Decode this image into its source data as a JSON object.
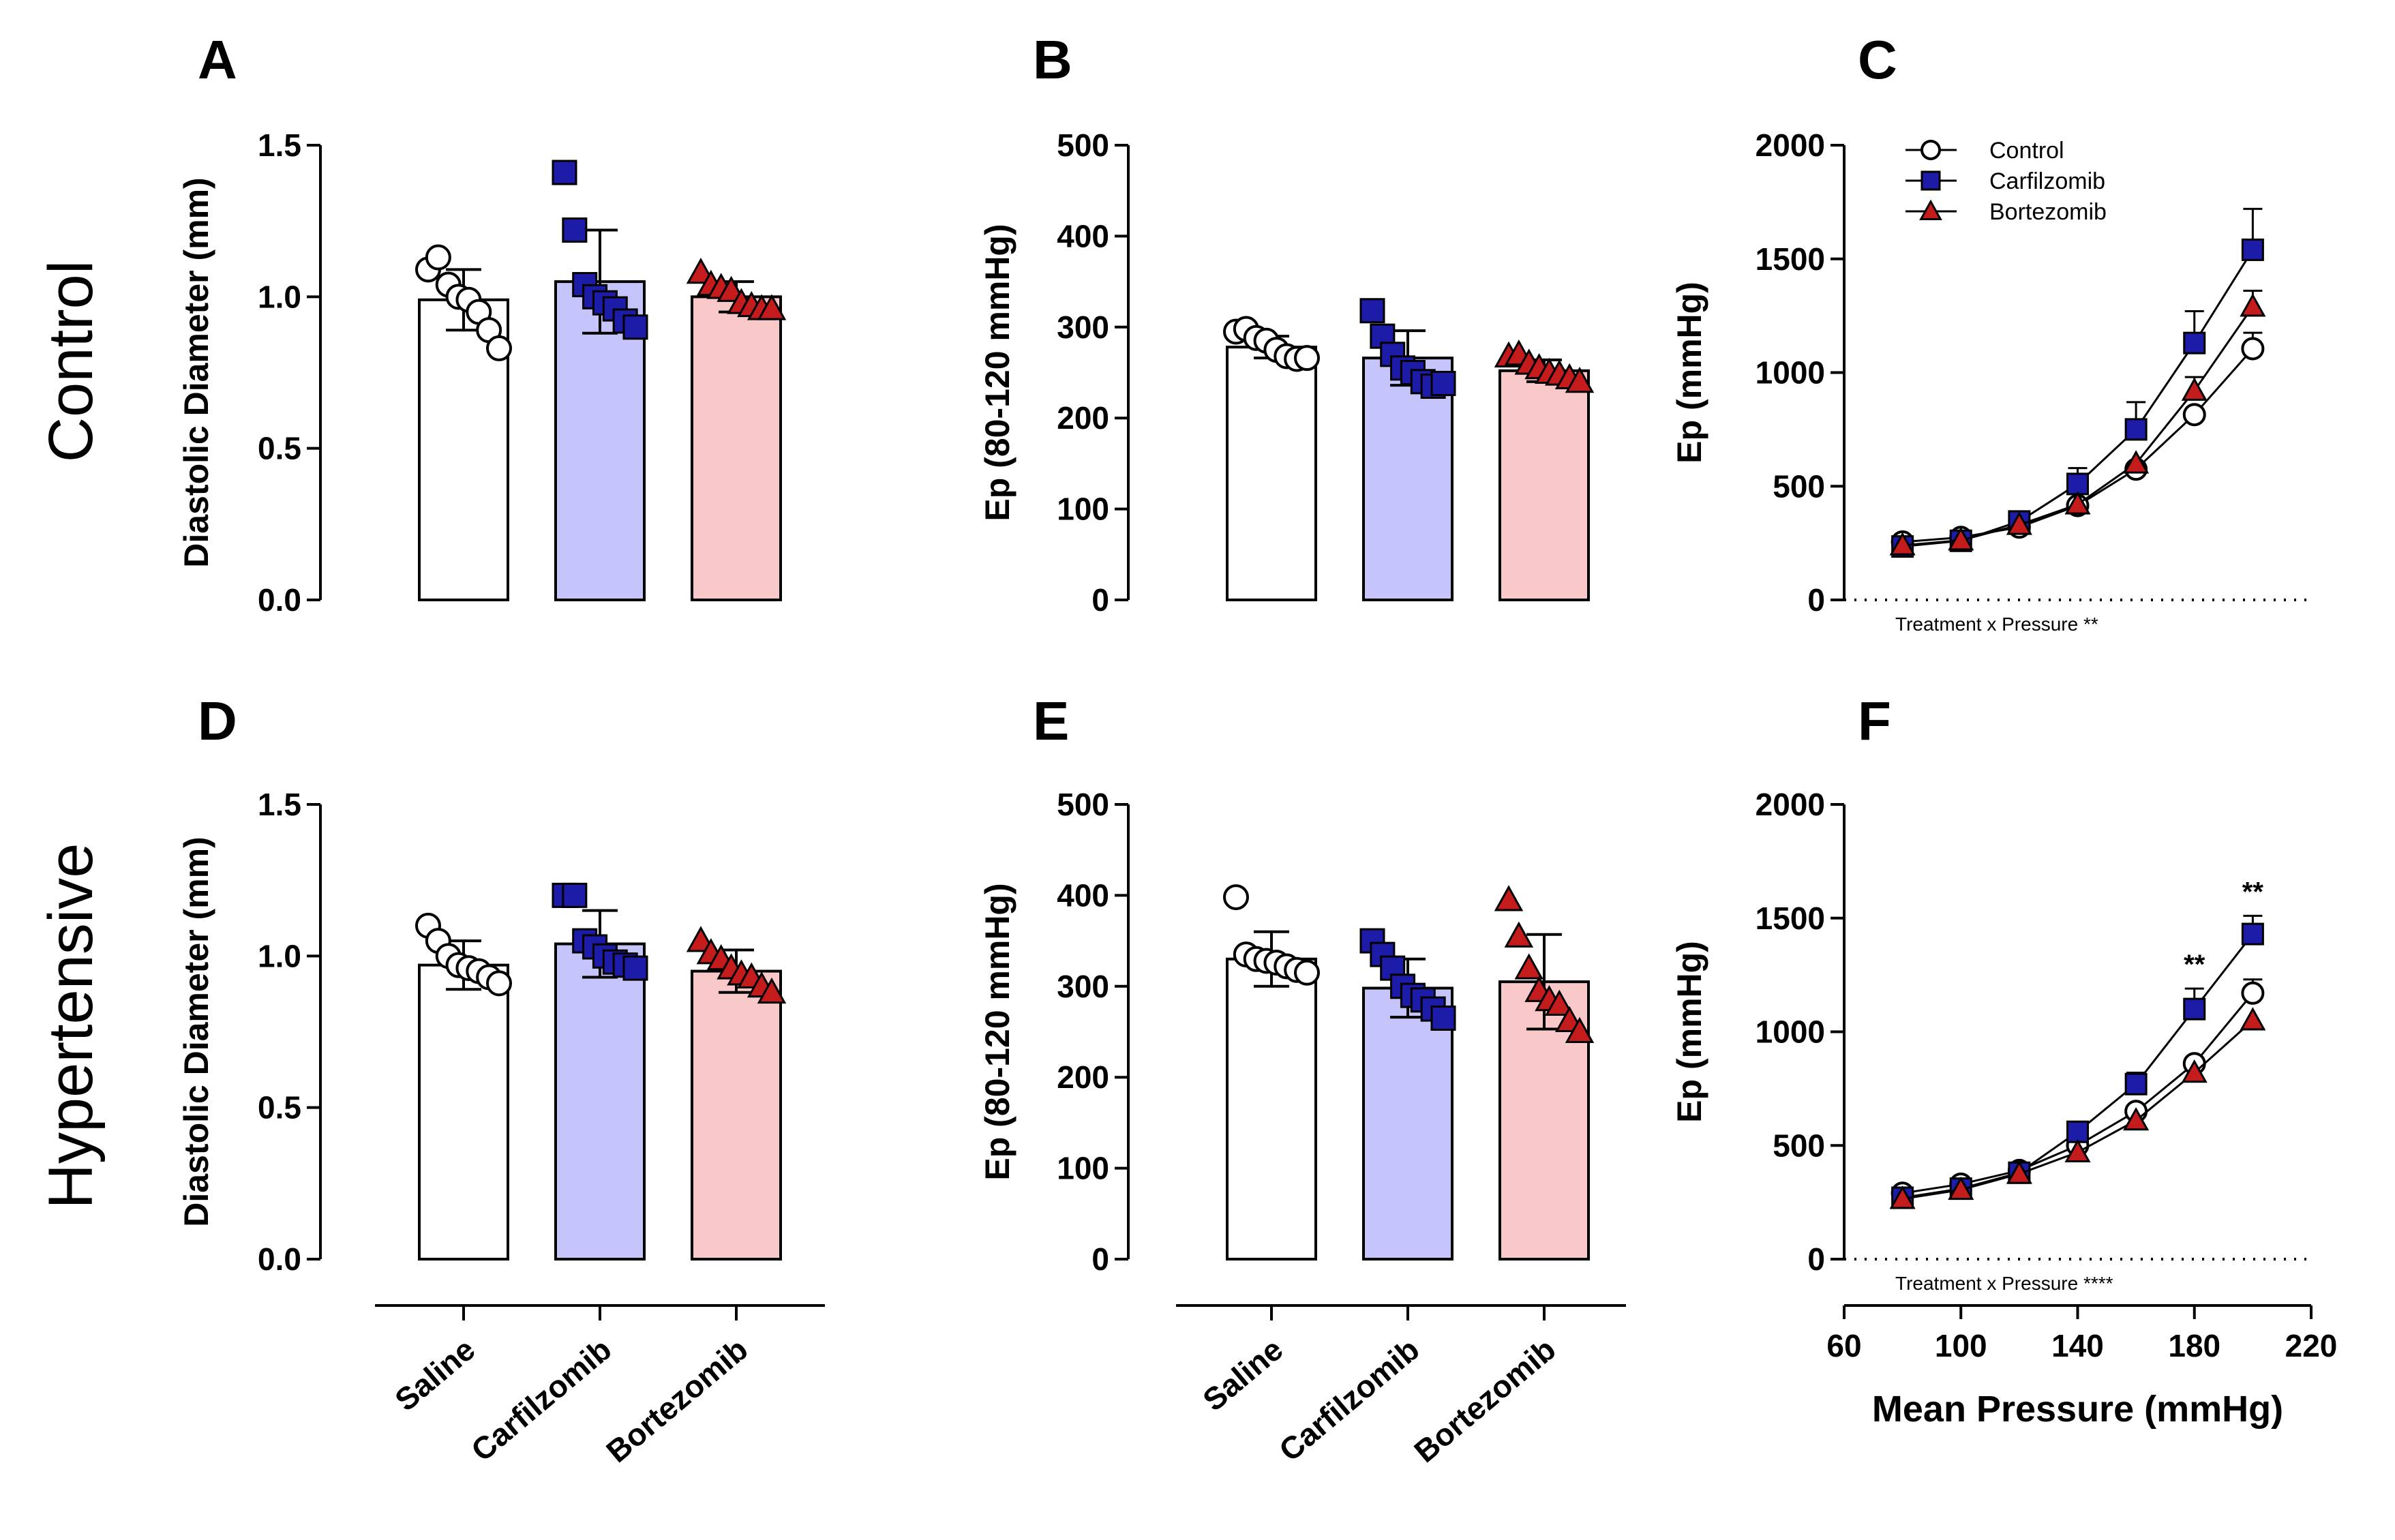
{
  "row_labels": {
    "control": "Control",
    "hypertensive": "Hypertensive"
  },
  "colors": {
    "saline_fill": "#ffffff",
    "carfilzomib_fill": "#c5c5fb",
    "bortezomib_fill": "#f9c8c8",
    "saline_marker": "#ffffff",
    "carfilzomib_marker": "#1c1ca8",
    "bortezomib_marker": "#c41c1c",
    "axis": "#000000"
  },
  "shared_x_categories": [
    "Saline",
    "Carfilzomib",
    "Bortezomib"
  ],
  "chart_data": [
    {
      "panel": "A",
      "type": "bar",
      "ylabel": "Diastolic Diameter (mm)",
      "ylim": [
        0,
        1.5
      ],
      "yticks": [
        0.0,
        0.5,
        1.0,
        1.5
      ],
      "tick_labels": [
        "0.0",
        "0.5",
        "1.0",
        "1.5"
      ],
      "categories": [
        "Saline",
        "Carfilzomib",
        "Bortezomib"
      ],
      "values": [
        0.99,
        1.05,
        1.0
      ],
      "sd": [
        0.1,
        0.17,
        0.05
      ],
      "points": [
        [
          1.09,
          1.13,
          1.04,
          1.0,
          0.99,
          0.95,
          0.89,
          0.83
        ],
        [
          1.41,
          1.22,
          1.04,
          1.0,
          0.98,
          0.96,
          0.92,
          0.9
        ],
        [
          1.08,
          1.04,
          1.03,
          1.02,
          0.98,
          0.97,
          0.96,
          0.96
        ]
      ]
    },
    {
      "panel": "B",
      "type": "bar",
      "ylabel": "Ep (80-120 mmHg)",
      "ylim": [
        0,
        500
      ],
      "yticks": [
        0,
        100,
        200,
        300,
        400,
        500
      ],
      "tick_labels": [
        "0",
        "100",
        "200",
        "300",
        "400",
        "500"
      ],
      "categories": [
        "Saline",
        "Carfilzomib",
        "Bortezomib"
      ],
      "values": [
        278,
        266,
        252
      ],
      "sd": [
        12,
        30,
        12
      ],
      "points": [
        [
          295,
          298,
          288,
          285,
          275,
          268,
          265,
          266
        ],
        [
          318,
          290,
          270,
          255,
          250,
          240,
          235,
          238
        ],
        [
          268,
          270,
          260,
          255,
          250,
          248,
          244,
          240
        ]
      ]
    },
    {
      "panel": "C",
      "type": "line",
      "ylabel": "Ep (mmHg)",
      "ylim": [
        0,
        2000
      ],
      "yticks": [
        0,
        500,
        1000,
        1500,
        2000
      ],
      "tick_labels": [
        "0",
        "500",
        "1000",
        "1500",
        "2000"
      ],
      "xlim": [
        60,
        220
      ],
      "x": [
        80,
        100,
        120,
        140,
        160,
        180,
        200
      ],
      "annotation": "Treatment x Pressure **",
      "series": [
        {
          "name": "Control",
          "values": [
            255,
            275,
            320,
            415,
            575,
            815,
            1105
          ],
          "err": [
            0,
            0,
            0,
            0,
            0,
            0,
            70
          ]
        },
        {
          "name": "Carfilzomib",
          "values": [
            235,
            260,
            345,
            510,
            750,
            1130,
            1540
          ],
          "err": [
            0,
            0,
            0,
            70,
            120,
            140,
            180
          ]
        },
        {
          "name": "Bortezomib",
          "values": [
            240,
            262,
            330,
            420,
            600,
            920,
            1290
          ],
          "err": [
            0,
            0,
            0,
            0,
            0,
            60,
            70
          ]
        }
      ]
    },
    {
      "panel": "D",
      "type": "bar",
      "ylabel": "Diastolic Diameter (mm)",
      "ylim": [
        0,
        1.5
      ],
      "yticks": [
        0.0,
        0.5,
        1.0,
        1.5
      ],
      "tick_labels": [
        "0.0",
        "0.5",
        "1.0",
        "1.5"
      ],
      "categories": [
        "Saline",
        "Carfilzomib",
        "Bortezomib"
      ],
      "values": [
        0.97,
        1.04,
        0.95
      ],
      "sd": [
        0.08,
        0.11,
        0.07
      ],
      "points": [
        [
          1.1,
          1.05,
          1.0,
          0.97,
          0.96,
          0.95,
          0.93,
          0.91
        ],
        [
          1.2,
          1.2,
          1.05,
          1.03,
          1.0,
          0.98,
          0.97,
          0.96
        ],
        [
          1.05,
          1.01,
          0.99,
          0.96,
          0.94,
          0.93,
          0.9,
          0.88
        ]
      ]
    },
    {
      "panel": "E",
      "type": "bar",
      "ylabel": "Ep (80-120 mmHg)",
      "ylim": [
        0,
        500
      ],
      "yticks": [
        0,
        100,
        200,
        300,
        400,
        500
      ],
      "tick_labels": [
        "0",
        "100",
        "200",
        "300",
        "400",
        "500"
      ],
      "categories": [
        "Saline",
        "Carfilzomib",
        "Bortezomib"
      ],
      "values": [
        330,
        298,
        305
      ],
      "sd": [
        30,
        32,
        52
      ],
      "points": [
        [
          398,
          335,
          330,
          328,
          326,
          322,
          318,
          315
        ],
        [
          350,
          335,
          320,
          300,
          290,
          285,
          275,
          265
        ],
        [
          395,
          355,
          320,
          295,
          285,
          280,
          262,
          250
        ]
      ]
    },
    {
      "panel": "F",
      "type": "line",
      "ylabel": "Ep (mmHg)",
      "xlabel": "Mean Pressure (mmHg)",
      "ylim": [
        0,
        2000
      ],
      "yticks": [
        0,
        500,
        1000,
        1500,
        2000
      ],
      "tick_labels": [
        "0",
        "500",
        "1000",
        "1500",
        "2000"
      ],
      "xlim": [
        60,
        220
      ],
      "x": [
        80,
        100,
        120,
        140,
        160,
        180,
        200
      ],
      "xticks": [
        60,
        100,
        140,
        180,
        220
      ],
      "xtick_labels": [
        "60",
        "100",
        "140",
        "180",
        "220"
      ],
      "annotation": "Treatment x Pressure ****",
      "significance": [
        {
          "x": 180,
          "label": "**"
        },
        {
          "x": 200,
          "label": "**"
        }
      ],
      "series": [
        {
          "name": "Control",
          "values": [
            290,
            330,
            390,
            500,
            650,
            860,
            1170
          ],
          "err": [
            0,
            0,
            0,
            0,
            0,
            0,
            60
          ]
        },
        {
          "name": "Carfilzomib",
          "values": [
            270,
            310,
            380,
            560,
            770,
            1100,
            1430
          ],
          "err": [
            0,
            0,
            0,
            0,
            50,
            90,
            80
          ]
        },
        {
          "name": "Bortezomib",
          "values": [
            265,
            305,
            375,
            470,
            610,
            820,
            1050
          ],
          "err": [
            0,
            0,
            0,
            0,
            0,
            0,
            0
          ]
        }
      ]
    }
  ]
}
